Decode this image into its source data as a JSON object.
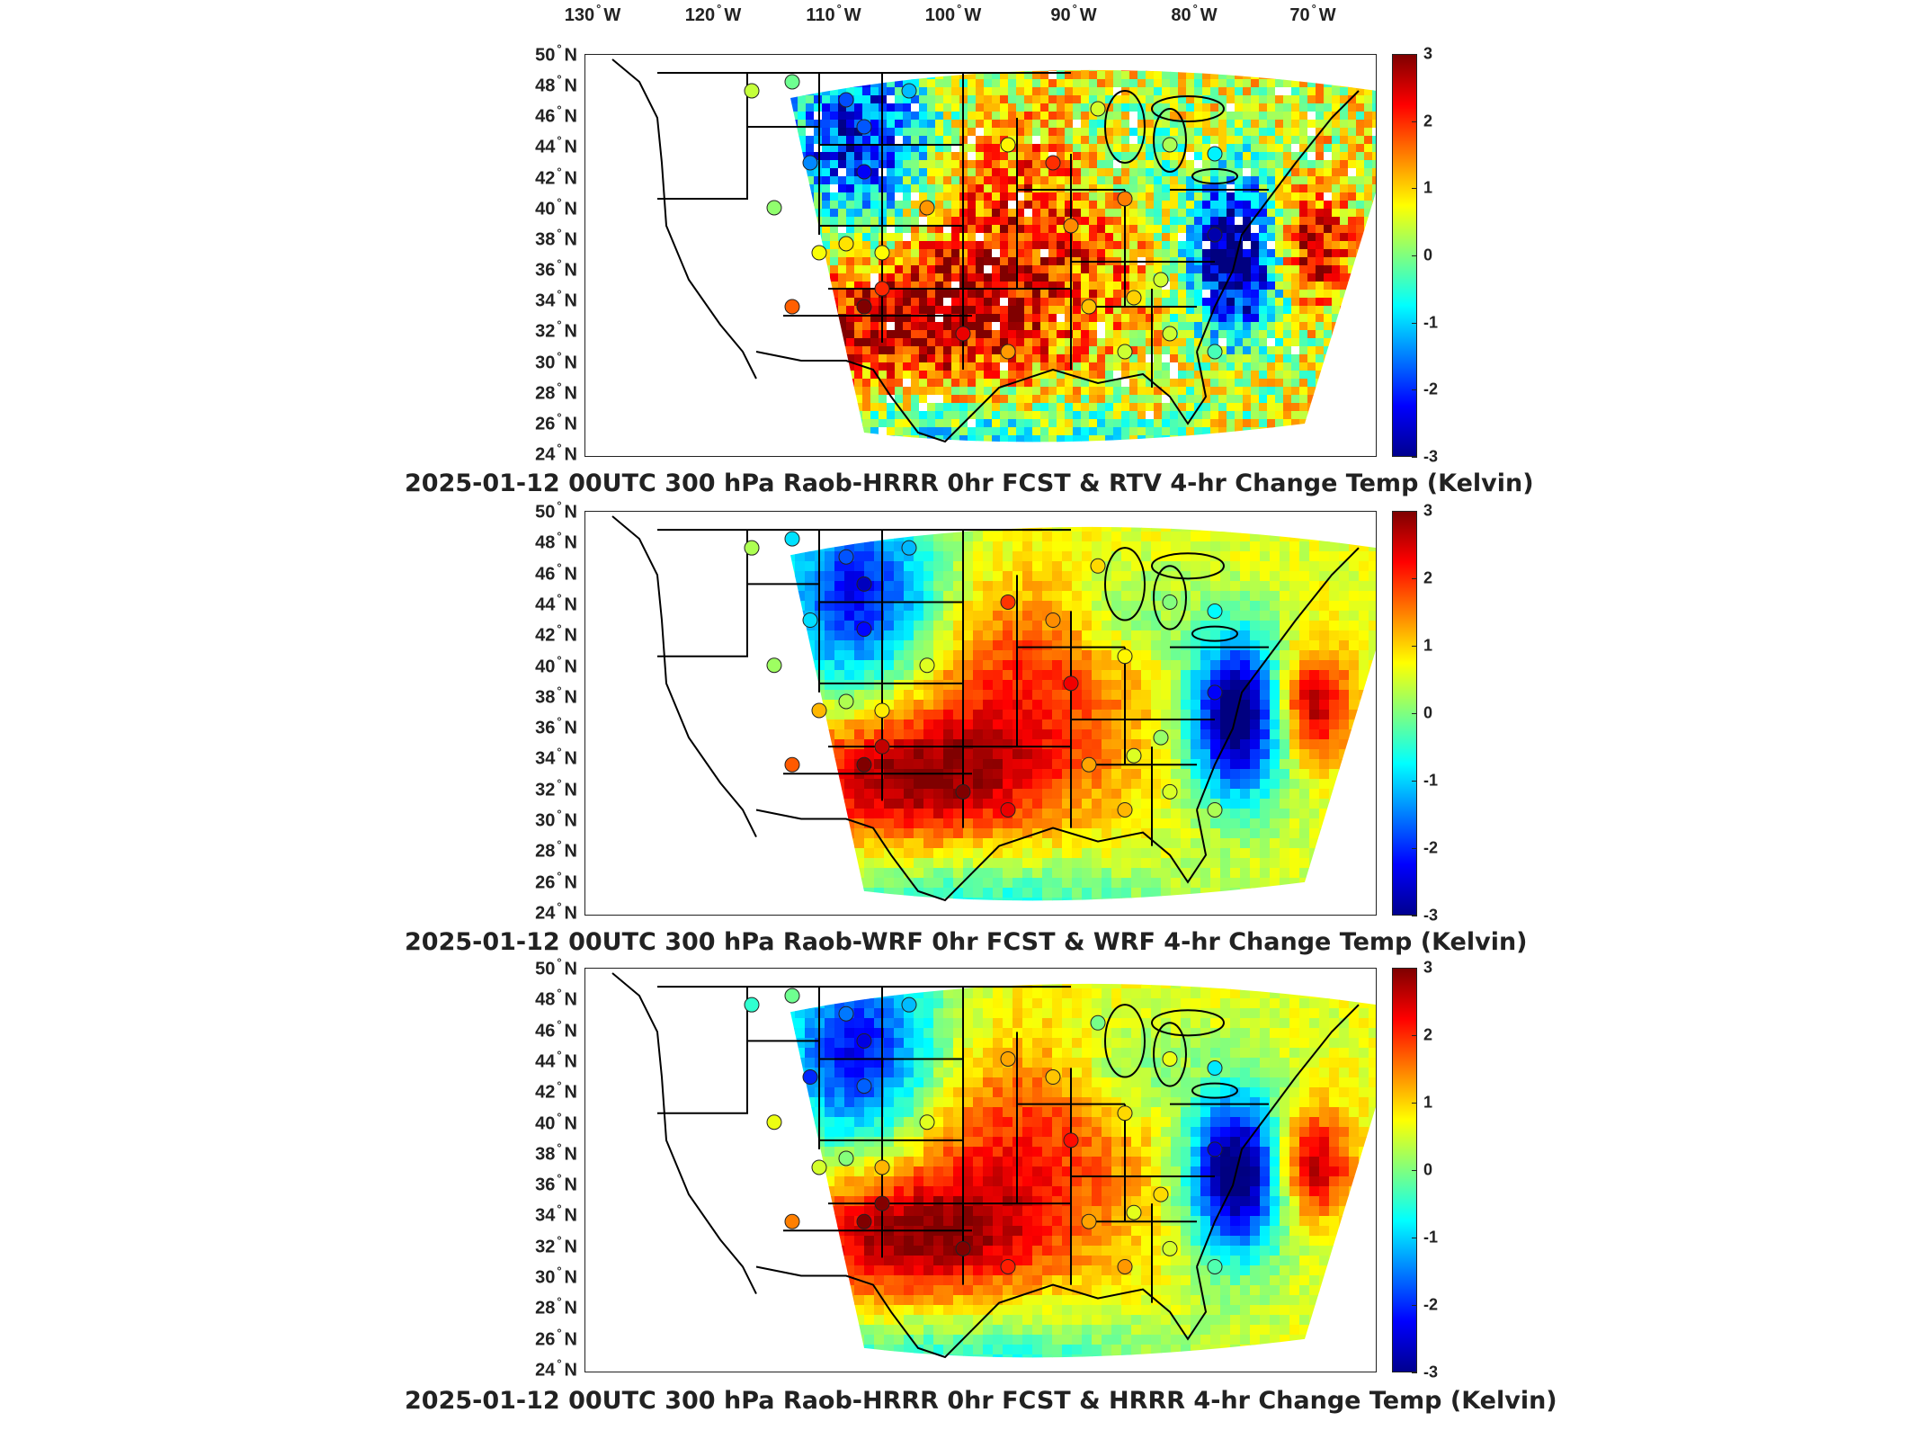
{
  "lon_labels": [
    {
      "deg": "130",
      "hemi": "W"
    },
    {
      "deg": "120",
      "hemi": "W"
    },
    {
      "deg": "110",
      "hemi": "W"
    },
    {
      "deg": "100",
      "hemi": "W"
    },
    {
      "deg": "90",
      "hemi": "W"
    },
    {
      "deg": "80",
      "hemi": "W"
    },
    {
      "deg": "70",
      "hemi": "W"
    }
  ],
  "lat_labels": [
    {
      "deg": "50",
      "hemi": "N"
    },
    {
      "deg": "48",
      "hemi": "N"
    },
    {
      "deg": "46",
      "hemi": "N"
    },
    {
      "deg": "44",
      "hemi": "N"
    },
    {
      "deg": "42",
      "hemi": "N"
    },
    {
      "deg": "40",
      "hemi": "N"
    },
    {
      "deg": "38",
      "hemi": "N"
    },
    {
      "deg": "36",
      "hemi": "N"
    },
    {
      "deg": "34",
      "hemi": "N"
    },
    {
      "deg": "32",
      "hemi": "N"
    },
    {
      "deg": "30",
      "hemi": "N"
    },
    {
      "deg": "28",
      "hemi": "N"
    },
    {
      "deg": "26",
      "hemi": "N"
    },
    {
      "deg": "24",
      "hemi": "N"
    }
  ],
  "colorbar": {
    "ticks": [
      "3",
      "2",
      "1",
      "0",
      "-1",
      "-2",
      "-3"
    ],
    "range": [
      -3,
      3
    ],
    "colormap": "jet"
  },
  "panels": [
    {
      "title": "2025-01-12 00UTC 300 hPa Raob-HRRR 0hr FCST & RTV 4-hr Change Temp (Kelvin)",
      "field_style": "noisy"
    },
    {
      "title": "2025-01-12 00UTC 300 hPa Raob-WRF 0hr FCST & WRF 4-hr Change Temp (Kelvin)",
      "field_style": "smooth"
    },
    {
      "title": "2025-01-12 00UTC 300 hPa Raob-HRRR 0hr FCST & HRRR 4-hr Change Temp (Kelvin)",
      "field_style": "smooth"
    }
  ],
  "colors": {
    "border": "#000000",
    "state_lines": "#000000",
    "no_data": "#ffffff"
  }
}
